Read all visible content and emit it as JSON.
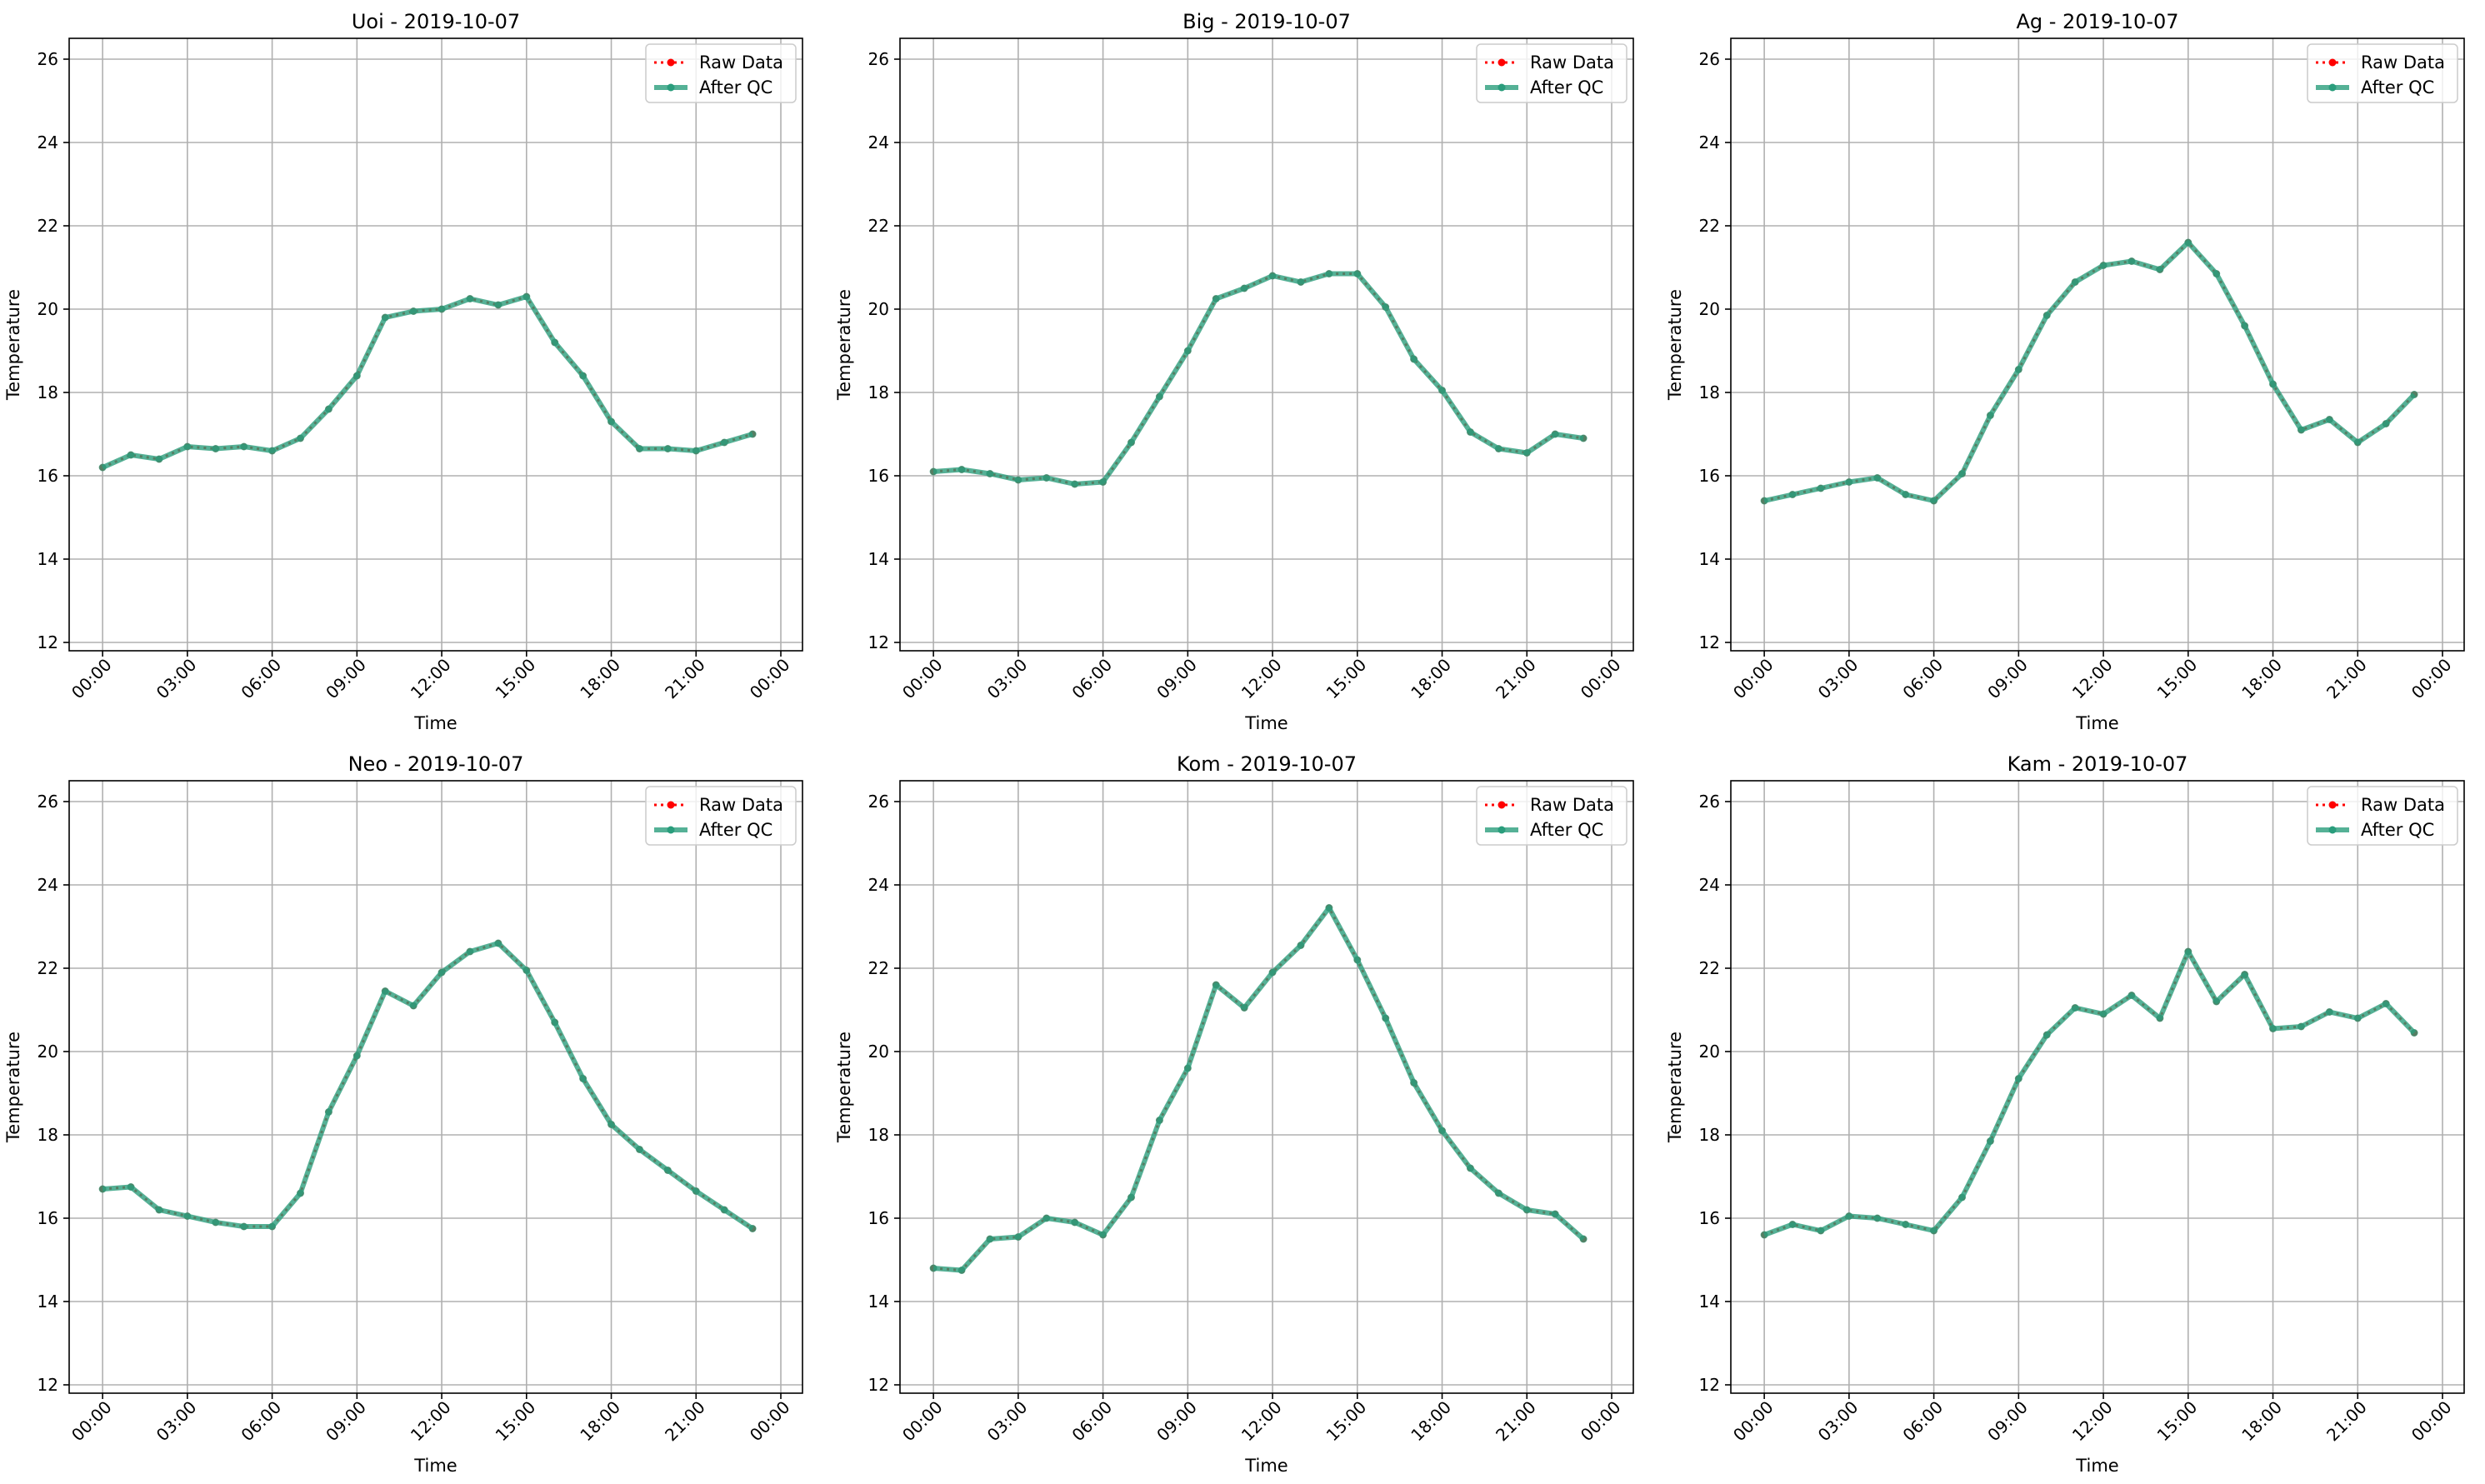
{
  "chart_data": [
    {
      "type": "line",
      "title": "Uoi - 2019-10-07",
      "xlabel": "Time",
      "ylabel": "Temperature",
      "ylim": [
        11.8,
        26.5
      ],
      "xlim": [
        "2019-10-06 22:49",
        "2019-10-08 00:46"
      ],
      "grid": true,
      "legend": "top-right",
      "x_ticks": [
        "00:00",
        "03:00",
        "06:00",
        "09:00",
        "12:00",
        "15:00",
        "18:00",
        "21:00",
        "00:00"
      ],
      "y_ticks": [
        12,
        14,
        16,
        18,
        20,
        22,
        24,
        26
      ],
      "x": [
        "00:00",
        "01:00",
        "02:00",
        "03:00",
        "04:00",
        "05:00",
        "06:00",
        "07:00",
        "08:00",
        "09:00",
        "10:00",
        "11:00",
        "12:00",
        "13:00",
        "14:00",
        "15:00",
        "16:00",
        "17:00",
        "18:00",
        "19:00",
        "20:00",
        "21:00",
        "22:00",
        "23:00"
      ],
      "series": [
        {
          "name": "Raw Data",
          "color": "#ff0000",
          "values": [
            16.2,
            16.5,
            16.4,
            16.7,
            16.65,
            16.7,
            16.6,
            16.9,
            17.6,
            18.4,
            19.8,
            19.95,
            20.0,
            20.25,
            20.1,
            20.3,
            19.2,
            18.4,
            17.3,
            16.65,
            16.65,
            16.6,
            16.8,
            17.0
          ]
        },
        {
          "name": "After QC",
          "color": "#2a9d7c",
          "values": [
            16.2,
            16.5,
            16.4,
            16.7,
            16.65,
            16.7,
            16.6,
            16.9,
            17.6,
            18.4,
            19.8,
            19.95,
            20.0,
            20.25,
            20.1,
            20.3,
            19.2,
            18.4,
            17.3,
            16.65,
            16.65,
            16.6,
            16.8,
            17.0
          ]
        }
      ]
    },
    {
      "type": "line",
      "title": "Big - 2019-10-07",
      "xlabel": "Time",
      "ylabel": "Temperature",
      "ylim": [
        11.8,
        26.5
      ],
      "xlim": [
        "2019-10-06 22:49",
        "2019-10-08 00:46"
      ],
      "grid": true,
      "legend": "top-right",
      "x_ticks": [
        "00:00",
        "03:00",
        "06:00",
        "09:00",
        "12:00",
        "15:00",
        "18:00",
        "21:00",
        "00:00"
      ],
      "y_ticks": [
        12,
        14,
        16,
        18,
        20,
        22,
        24,
        26
      ],
      "x": [
        "00:00",
        "01:00",
        "02:00",
        "03:00",
        "04:00",
        "05:00",
        "06:00",
        "07:00",
        "08:00",
        "09:00",
        "10:00",
        "11:00",
        "12:00",
        "13:00",
        "14:00",
        "15:00",
        "16:00",
        "17:00",
        "18:00",
        "19:00",
        "20:00",
        "21:00",
        "22:00",
        "23:00"
      ],
      "series": [
        {
          "name": "Raw Data",
          "color": "#ff0000",
          "values": [
            16.1,
            16.15,
            16.05,
            15.9,
            15.95,
            15.8,
            15.85,
            16.8,
            17.9,
            19.0,
            20.25,
            20.5,
            20.8,
            20.65,
            20.85,
            20.85,
            20.05,
            18.8,
            18.05,
            17.05,
            16.65,
            16.55,
            17.0,
            16.9
          ]
        },
        {
          "name": "After QC",
          "color": "#2a9d7c",
          "values": [
            16.1,
            16.15,
            16.05,
            15.9,
            15.95,
            15.8,
            15.85,
            16.8,
            17.9,
            19.0,
            20.25,
            20.5,
            20.8,
            20.65,
            20.85,
            20.85,
            20.05,
            18.8,
            18.05,
            17.05,
            16.65,
            16.55,
            17.0,
            16.9
          ]
        }
      ]
    },
    {
      "type": "line",
      "title": "Ag - 2019-10-07",
      "xlabel": "Time",
      "ylabel": "Temperature",
      "ylim": [
        11.8,
        26.5
      ],
      "xlim": [
        "2019-10-06 22:49",
        "2019-10-08 00:46"
      ],
      "grid": true,
      "legend": "top-right",
      "x_ticks": [
        "00:00",
        "03:00",
        "06:00",
        "09:00",
        "12:00",
        "15:00",
        "18:00",
        "21:00",
        "00:00"
      ],
      "y_ticks": [
        12,
        14,
        16,
        18,
        20,
        22,
        24,
        26
      ],
      "x": [
        "00:00",
        "01:00",
        "02:00",
        "03:00",
        "04:00",
        "05:00",
        "06:00",
        "07:00",
        "08:00",
        "09:00",
        "10:00",
        "11:00",
        "12:00",
        "13:00",
        "14:00",
        "15:00",
        "16:00",
        "17:00",
        "18:00",
        "19:00",
        "20:00",
        "21:00",
        "22:00",
        "23:00"
      ],
      "series": [
        {
          "name": "Raw Data",
          "color": "#ff0000",
          "values": [
            15.4,
            15.55,
            15.7,
            15.85,
            15.95,
            15.55,
            15.4,
            16.05,
            17.45,
            18.55,
            19.85,
            20.65,
            21.05,
            21.15,
            20.95,
            21.6,
            20.85,
            19.6,
            18.2,
            17.1,
            17.35,
            16.8,
            17.25,
            17.95
          ]
        },
        {
          "name": "After QC",
          "color": "#2a9d7c",
          "values": [
            15.4,
            15.55,
            15.7,
            15.85,
            15.95,
            15.55,
            15.4,
            16.05,
            17.45,
            18.55,
            19.85,
            20.65,
            21.05,
            21.15,
            20.95,
            21.6,
            20.85,
            19.6,
            18.2,
            17.1,
            17.35,
            16.8,
            17.25,
            17.95
          ]
        }
      ]
    },
    {
      "type": "line",
      "title": "Neo - 2019-10-07",
      "xlabel": "Time",
      "ylabel": "Temperature",
      "ylim": [
        11.8,
        26.5
      ],
      "xlim": [
        "2019-10-06 22:49",
        "2019-10-08 00:46"
      ],
      "grid": true,
      "legend": "top-right",
      "x_ticks": [
        "00:00",
        "03:00",
        "06:00",
        "09:00",
        "12:00",
        "15:00",
        "18:00",
        "21:00",
        "00:00"
      ],
      "y_ticks": [
        12,
        14,
        16,
        18,
        20,
        22,
        24,
        26
      ],
      "x": [
        "00:00",
        "01:00",
        "02:00",
        "03:00",
        "04:00",
        "05:00",
        "06:00",
        "07:00",
        "08:00",
        "09:00",
        "10:00",
        "11:00",
        "12:00",
        "13:00",
        "14:00",
        "15:00",
        "16:00",
        "17:00",
        "18:00",
        "19:00",
        "20:00",
        "21:00",
        "22:00",
        "23:00"
      ],
      "series": [
        {
          "name": "Raw Data",
          "color": "#ff0000",
          "values": [
            16.7,
            16.75,
            16.2,
            16.05,
            15.9,
            15.8,
            15.8,
            16.6,
            18.55,
            19.9,
            21.45,
            21.1,
            21.9,
            22.4,
            22.6,
            21.95,
            20.7,
            19.35,
            18.25,
            17.65,
            17.15,
            16.65,
            16.2,
            15.75
          ]
        },
        {
          "name": "After QC",
          "color": "#2a9d7c",
          "values": [
            16.7,
            16.75,
            16.2,
            16.05,
            15.9,
            15.8,
            15.8,
            16.6,
            18.55,
            19.9,
            21.45,
            21.1,
            21.9,
            22.4,
            22.6,
            21.95,
            20.7,
            19.35,
            18.25,
            17.65,
            17.15,
            16.65,
            16.2,
            15.75
          ]
        }
      ]
    },
    {
      "type": "line",
      "title": "Kom - 2019-10-07",
      "xlabel": "Time",
      "ylabel": "Temperature",
      "ylim": [
        11.8,
        26.5
      ],
      "xlim": [
        "2019-10-06 22:49",
        "2019-10-08 00:46"
      ],
      "grid": true,
      "legend": "top-right",
      "x_ticks": [
        "00:00",
        "03:00",
        "06:00",
        "09:00",
        "12:00",
        "15:00",
        "18:00",
        "21:00",
        "00:00"
      ],
      "y_ticks": [
        12,
        14,
        16,
        18,
        20,
        22,
        24,
        26
      ],
      "x": [
        "00:00",
        "01:00",
        "02:00",
        "03:00",
        "04:00",
        "05:00",
        "06:00",
        "07:00",
        "08:00",
        "09:00",
        "10:00",
        "11:00",
        "12:00",
        "13:00",
        "14:00",
        "15:00",
        "16:00",
        "17:00",
        "18:00",
        "19:00",
        "20:00",
        "21:00",
        "22:00",
        "23:00"
      ],
      "series": [
        {
          "name": "Raw Data",
          "color": "#ff0000",
          "values": [
            14.8,
            14.75,
            15.5,
            15.55,
            16.0,
            15.9,
            15.6,
            16.5,
            18.35,
            19.6,
            21.6,
            21.05,
            21.9,
            22.55,
            23.45,
            22.2,
            20.8,
            19.25,
            18.1,
            17.2,
            16.6,
            16.2,
            16.1,
            15.5
          ]
        },
        {
          "name": "After QC",
          "color": "#2a9d7c",
          "values": [
            14.8,
            14.75,
            15.5,
            15.55,
            16.0,
            15.9,
            15.6,
            16.5,
            18.35,
            19.6,
            21.6,
            21.05,
            21.9,
            22.55,
            23.45,
            22.2,
            20.8,
            19.25,
            18.1,
            17.2,
            16.6,
            16.2,
            16.1,
            15.5
          ]
        }
      ]
    },
    {
      "type": "line",
      "title": "Kam - 2019-10-07",
      "xlabel": "Time",
      "ylabel": "Temperature",
      "ylim": [
        11.8,
        26.5
      ],
      "xlim": [
        "2019-10-06 22:49",
        "2019-10-08 00:46"
      ],
      "grid": true,
      "legend": "top-right",
      "x_ticks": [
        "00:00",
        "03:00",
        "06:00",
        "09:00",
        "12:00",
        "15:00",
        "18:00",
        "21:00",
        "00:00"
      ],
      "y_ticks": [
        12,
        14,
        16,
        18,
        20,
        22,
        24,
        26
      ],
      "x": [
        "00:00",
        "01:00",
        "02:00",
        "03:00",
        "04:00",
        "05:00",
        "06:00",
        "07:00",
        "08:00",
        "09:00",
        "10:00",
        "11:00",
        "12:00",
        "13:00",
        "14:00",
        "15:00",
        "16:00",
        "17:00",
        "18:00",
        "19:00",
        "20:00",
        "21:00",
        "22:00",
        "23:00"
      ],
      "series": [
        {
          "name": "Raw Data",
          "color": "#ff0000",
          "values": [
            15.6,
            15.85,
            15.7,
            16.05,
            16.0,
            15.85,
            15.7,
            16.5,
            17.85,
            19.35,
            20.4,
            21.05,
            20.9,
            21.35,
            20.8,
            22.4,
            21.2,
            21.85,
            20.55,
            20.6,
            20.95,
            20.8,
            21.15,
            20.45
          ]
        },
        {
          "name": "After QC",
          "color": "#2a9d7c",
          "values": [
            15.6,
            15.85,
            15.7,
            16.05,
            16.0,
            15.85,
            15.7,
            16.5,
            17.85,
            19.35,
            20.4,
            21.05,
            20.9,
            21.35,
            20.8,
            22.4,
            21.2,
            21.85,
            20.55,
            20.6,
            20.95,
            20.8,
            21.15,
            20.45
          ]
        }
      ]
    }
  ]
}
